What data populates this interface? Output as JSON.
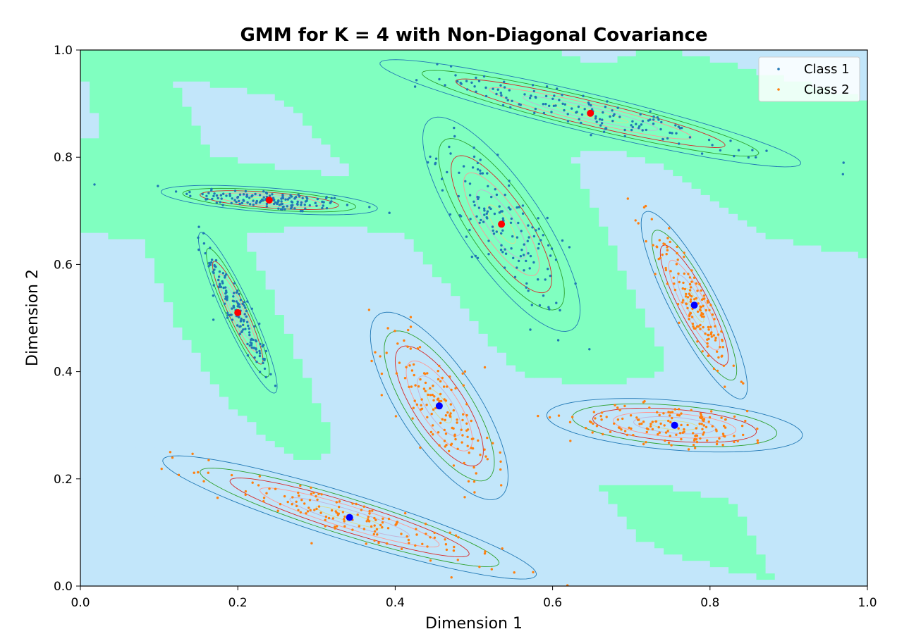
{
  "chart_data": {
    "type": "scatter",
    "title": "GMM for K = 4 with Non-Diagonal Covariance",
    "xlabel": "Dimension 1",
    "ylabel": "Dimension 2",
    "xlim": [
      0.0,
      1.0
    ],
    "ylim": [
      0.0,
      1.0
    ],
    "xticks": [
      "0.0",
      "0.2",
      "0.4",
      "0.6",
      "0.8",
      "1.0"
    ],
    "yticks": [
      "0.0",
      "0.2",
      "0.4",
      "0.6",
      "0.8",
      "1.0"
    ],
    "grid": false,
    "legend": {
      "placement": "top-right"
    },
    "colors": {
      "class1": "#1f77b4",
      "class2": "#ff7f0e",
      "region_class1": "#80ffc0",
      "region_class2": "#c2e6fa",
      "class1_center": "#ff0000",
      "class2_center": "#0000ff"
    },
    "series": [
      {
        "name": "Class 1",
        "color": "#1f77b4",
        "centers": [
          [
            0.24,
            0.72
          ],
          [
            0.2,
            0.51
          ],
          [
            0.535,
            0.675
          ],
          [
            0.648,
            0.882
          ]
        ],
        "components": [
          {
            "mean": [
              0.24,
              0.72
            ],
            "sx": 0.055,
            "sy": 0.011,
            "rho": -0.56
          },
          {
            "mean": [
              0.2,
              0.51
            ],
            "sx": 0.02,
            "sy": 0.06,
            "rho": -0.92
          },
          {
            "mean": [
              0.535,
              0.675
            ],
            "sx": 0.04,
            "sy": 0.08,
            "rho": -0.8
          },
          {
            "mean": [
              0.648,
              0.882
            ],
            "sx": 0.107,
            "sy": 0.04,
            "rho": -0.93
          }
        ]
      },
      {
        "name": "Class 2",
        "color": "#ff7f0e",
        "centers": [
          [
            0.342,
            0.128
          ],
          [
            0.456,
            0.336
          ],
          [
            0.78,
            0.524
          ],
          [
            0.755,
            0.3
          ]
        ],
        "components": [
          {
            "mean": [
              0.342,
              0.128
            ],
            "sx": 0.095,
            "sy": 0.046,
            "rho": -0.92
          },
          {
            "mean": [
              0.456,
              0.336
            ],
            "sx": 0.035,
            "sy": 0.07,
            "rho": -0.75
          },
          {
            "mean": [
              0.78,
              0.524
            ],
            "sx": 0.027,
            "sy": 0.07,
            "rho": -0.87
          },
          {
            "mean": [
              0.755,
              0.3
            ],
            "sx": 0.065,
            "sy": 0.02,
            "rho": -0.37
          }
        ]
      }
    ]
  }
}
